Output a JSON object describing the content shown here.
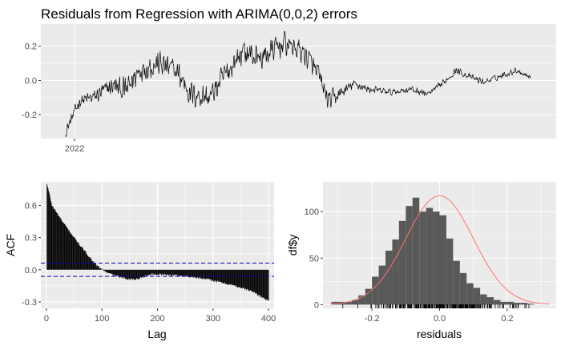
{
  "title": "Residuals from Regression with ARIMA(0,0,2) errors",
  "colors": {
    "panel_bg": "#EBEBEB",
    "grid_major": "#FFFFFF",
    "line": "#000000",
    "ci_line": "#0000CC",
    "hist_fill": "#595959",
    "density": "#F8766D",
    "tick_text": "#4D4D4D"
  },
  "chart_data": [
    {
      "id": "residual-series",
      "type": "line",
      "title": "Residuals from Regression with ARIMA(0,0,2) errors",
      "xlabel": "",
      "ylabel": "",
      "x_ticks": [
        "2022"
      ],
      "y_ticks": [
        -0.2,
        0.0,
        0.2
      ],
      "y_tick_labels": [
        "-0.2",
        "0.0",
        "0.2"
      ],
      "ylim": [
        -0.34,
        0.33
      ],
      "n_obs": 1000,
      "anchors": [
        {
          "t": 0,
          "v": -0.3
        },
        {
          "t": 30,
          "v": -0.12
        },
        {
          "t": 60,
          "v": -0.1
        },
        {
          "t": 100,
          "v": -0.03
        },
        {
          "t": 130,
          "v": -0.06
        },
        {
          "t": 160,
          "v": 0.07
        },
        {
          "t": 200,
          "v": 0.1
        },
        {
          "t": 240,
          "v": 0.05
        },
        {
          "t": 270,
          "v": -0.08
        },
        {
          "t": 310,
          "v": -0.1
        },
        {
          "t": 340,
          "v": 0.02
        },
        {
          "t": 380,
          "v": 0.17
        },
        {
          "t": 420,
          "v": 0.13
        },
        {
          "t": 470,
          "v": 0.22
        },
        {
          "t": 510,
          "v": 0.17
        },
        {
          "t": 540,
          "v": 0.05
        },
        {
          "t": 565,
          "v": -0.12
        },
        {
          "t": 590,
          "v": -0.08
        },
        {
          "t": 620,
          "v": -0.02
        },
        {
          "t": 650,
          "v": -0.05
        },
        {
          "t": 700,
          "v": -0.07
        },
        {
          "t": 740,
          "v": -0.05
        },
        {
          "t": 780,
          "v": -0.08
        },
        {
          "t": 810,
          "v": -0.02
        },
        {
          "t": 840,
          "v": 0.06
        },
        {
          "t": 870,
          "v": 0.02
        },
        {
          "t": 900,
          "v": -0.01
        },
        {
          "t": 940,
          "v": 0.03
        },
        {
          "t": 970,
          "v": 0.06
        },
        {
          "t": 1000,
          "v": 0.02
        }
      ],
      "noise": [
        {
          "t": 0,
          "a": 0.04
        },
        {
          "t": 80,
          "a": 0.06
        },
        {
          "t": 130,
          "a": 0.09
        },
        {
          "t": 330,
          "a": 0.1
        },
        {
          "t": 560,
          "a": 0.08
        },
        {
          "t": 600,
          "a": 0.04
        },
        {
          "t": 640,
          "a": 0.025
        },
        {
          "t": 1000,
          "a": 0.02
        }
      ]
    },
    {
      "id": "acf",
      "type": "bar",
      "title": "",
      "xlabel": "Lag",
      "ylabel": "ACF",
      "x_ticks": [
        0,
        100,
        200,
        300,
        400
      ],
      "y_ticks": [
        -0.3,
        0.0,
        0.3,
        0.6
      ],
      "y_tick_labels": [
        "-0.3",
        "0.0",
        "0.3",
        "0.6"
      ],
      "xlim": [
        -10,
        410
      ],
      "ylim": [
        -0.36,
        0.82
      ],
      "confidence_bound": 0.062,
      "max_lag": 400,
      "shape": [
        {
          "lag": 1,
          "acf": 0.8
        },
        {
          "lag": 3,
          "acf": 0.76
        },
        {
          "lag": 10,
          "acf": 0.6
        },
        {
          "lag": 30,
          "acf": 0.44
        },
        {
          "lag": 60,
          "acf": 0.23
        },
        {
          "lag": 90,
          "acf": 0.04
        },
        {
          "lag": 110,
          "acf": -0.03
        },
        {
          "lag": 140,
          "acf": -0.08
        },
        {
          "lag": 160,
          "acf": -0.09
        },
        {
          "lag": 190,
          "acf": -0.04
        },
        {
          "lag": 230,
          "acf": -0.05
        },
        {
          "lag": 270,
          "acf": -0.07
        },
        {
          "lag": 300,
          "acf": -0.1
        },
        {
          "lag": 340,
          "acf": -0.15
        },
        {
          "lag": 370,
          "acf": -0.2
        },
        {
          "lag": 400,
          "acf": -0.29
        }
      ]
    },
    {
      "id": "histogram",
      "type": "bar",
      "title": "",
      "xlabel": "residuals",
      "ylabel": "df$y",
      "x_ticks": [
        -0.2,
        0.0,
        0.2
      ],
      "x_tick_labels": [
        "-0.2",
        "0.0",
        "0.2"
      ],
      "y_ticks": [
        0,
        50,
        100
      ],
      "y_tick_labels": [
        "0",
        "50",
        "100"
      ],
      "xlim": [
        -0.345,
        0.345
      ],
      "ylim": [
        -4,
        132
      ],
      "bin_width": 0.02,
      "bins_start": -0.32,
      "counts": [
        3,
        3,
        3,
        5,
        10,
        17,
        30,
        42,
        58,
        70,
        90,
        106,
        115,
        100,
        104,
        100,
        96,
        71,
        47,
        34,
        23,
        18,
        11,
        8,
        5,
        3,
        3,
        2,
        2,
        1
      ],
      "density_curve": {
        "mean": 0.0,
        "sd": 0.1,
        "peak": 117
      },
      "rug_range": [
        -0.31,
        0.31
      ]
    }
  ]
}
